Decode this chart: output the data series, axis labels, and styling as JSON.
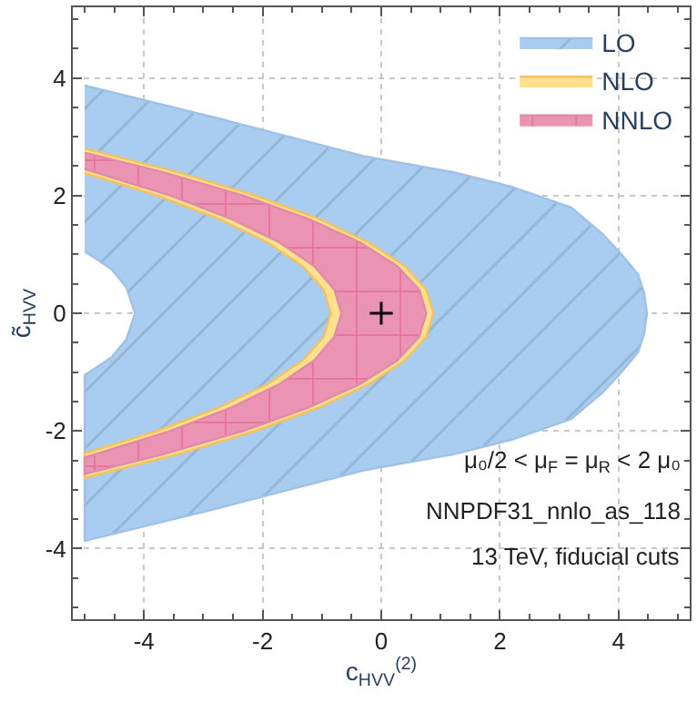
{
  "chart_data": {
    "type": "area",
    "xlabel": "c$_{HVV}$$^{(2)}$",
    "ylabel": "c̃$_{HVV}$",
    "xlim": [
      -5.2,
      5.2
    ],
    "ylim": [
      -5.2,
      5.2
    ],
    "xticks": [
      -4,
      -2,
      0,
      2,
      4
    ],
    "yticks": [
      -4,
      -2,
      0,
      2,
      4
    ],
    "grid": true,
    "legend": "top right",
    "series": [
      {
        "name": "LO",
        "color": "#a8cdf0",
        "x": [
          -5.0,
          -2.7,
          -0.3,
          1.2,
          2.2,
          3.2,
          3.73,
          4.05,
          4.33,
          4.43,
          4.48,
          4.43,
          4.33,
          4.05,
          3.73,
          3.2,
          2.2,
          1.2,
          -0.3,
          -2.7,
          -5.0,
          -5.0,
          -4.8,
          -4.55,
          -4.3,
          -4.15,
          -4.3,
          -4.55,
          -4.8,
          -5.0
        ],
        "values": [
          3.87,
          3.3,
          2.67,
          2.4,
          2.15,
          1.8,
          1.35,
          1.0,
          0.66,
          0.35,
          0,
          -0.35,
          -0.66,
          -1.0,
          -1.35,
          -1.8,
          -2.15,
          -2.4,
          -2.67,
          -3.3,
          -3.87,
          -1.05,
          -0.92,
          -0.75,
          -0.45,
          0,
          0.45,
          0.75,
          0.92,
          1.05
        ]
      },
      {
        "name": "NLO",
        "color": "#ffe08c",
        "x": [
          -5.0,
          -3.44,
          -2.12,
          -1.04,
          -0.2,
          0.4,
          0.76,
          0.88,
          0.76,
          0.4,
          -0.2,
          -1.04,
          -2.12,
          -3.44,
          -5.0,
          -5.0,
          -3.78,
          -2.73,
          -1.91,
          -1.32,
          -0.97,
          -0.85,
          -0.97,
          -1.32,
          -1.91,
          -2.73,
          -3.78,
          -5.0
        ],
        "values": [
          2.8,
          2.4,
          2.0,
          1.6,
          1.2,
          0.8,
          0.4,
          0,
          -0.4,
          -0.8,
          -1.2,
          -1.6,
          -2.0,
          -2.4,
          -2.8,
          -2.38,
          -2.0,
          -1.6,
          -1.2,
          -0.8,
          -0.4,
          0,
          0.4,
          0.8,
          1.2,
          1.6,
          2.0,
          2.38
        ]
      },
      {
        "name": "NNLO",
        "color": "#eb93b2",
        "x": [
          -5.0,
          -3.69,
          -2.33,
          -1.22,
          -0.35,
          0.27,
          0.64,
          0.76,
          0.64,
          0.27,
          -0.35,
          -1.22,
          -2.33,
          -3.69,
          -5.0,
          -5.0,
          -3.55,
          -2.52,
          -1.71,
          -1.13,
          -0.79,
          -0.67,
          -0.79,
          -1.13,
          -1.71,
          -2.52,
          -3.55,
          -5.0
        ],
        "values": [
          2.73,
          2.4,
          2.0,
          1.6,
          1.2,
          0.8,
          0.4,
          0,
          -0.4,
          -0.8,
          -1.2,
          -1.6,
          -2.0,
          -2.4,
          -2.73,
          -2.45,
          -2.0,
          -1.6,
          -1.2,
          -0.8,
          -0.4,
          0,
          0.4,
          0.8,
          1.2,
          1.6,
          2.0,
          2.45
        ]
      },
      {
        "type": "scatter",
        "marker": "cross",
        "color": "#000000",
        "x": [
          0
        ],
        "values": [
          0
        ]
      }
    ],
    "annotations": [
      "μ₀/2 < μ$_{F}$ = μ$_{R}$ < 2 μ₀",
      "NNPDF31_nnlo_as_118",
      "13 TeV, fiducial cuts"
    ]
  }
}
